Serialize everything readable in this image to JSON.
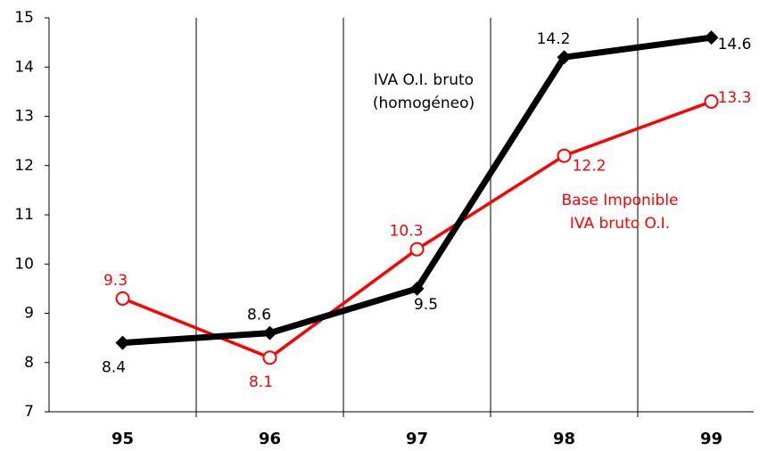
{
  "chart_data": {
    "type": "line",
    "categories": [
      "95",
      "96",
      "97",
      "98",
      "99"
    ],
    "series": [
      {
        "name": "IVA O.I. bruto (homogéneo)",
        "color": "#000000",
        "values": [
          8.4,
          8.6,
          9.5,
          14.2,
          14.6
        ],
        "marker": "diamond"
      },
      {
        "name": "Base Imponible IVA bruto O.I.",
        "color": "#ff0000",
        "values": [
          9.3,
          8.1,
          10.3,
          12.2,
          13.3
        ],
        "marker": "circle"
      }
    ],
    "annotations": [
      {
        "lines": [
          "IVA O.I. bruto",
          "(homogéneo)"
        ],
        "color": "#000000"
      },
      {
        "lines": [
          "Base Imponible",
          "IVA bruto O.I."
        ],
        "color": "#ff0000"
      }
    ],
    "ylim": [
      7,
      15
    ],
    "yticks": [
      7,
      8,
      9,
      10,
      11,
      12,
      13,
      14,
      15
    ],
    "grid": "vertical"
  }
}
